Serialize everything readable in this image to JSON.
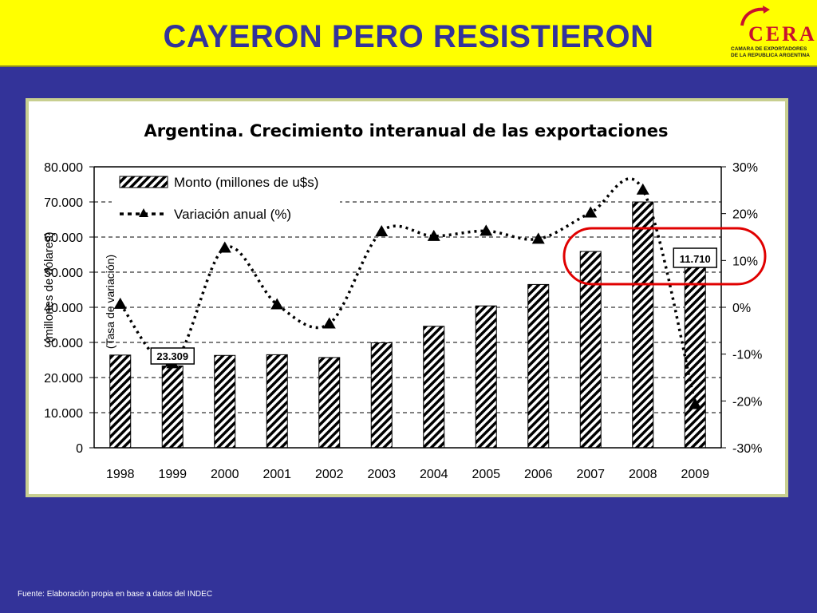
{
  "header": {
    "title": "CAYERON PERO RESISTIERON",
    "logo": {
      "name": "CERA",
      "subtitle_line1": "CAMARA DE EXPORTADORES",
      "subtitle_line2": "DE LA REPUBLICA ARGENTINA"
    },
    "background": "#ffff00",
    "title_color": "#33339a"
  },
  "chart_data": {
    "type": "bar",
    "title": "Argentina. Crecimiento interanual de las exportaciones",
    "categories": [
      "1998",
      "1999",
      "2000",
      "2001",
      "2002",
      "2003",
      "2004",
      "2005",
      "2006",
      "2007",
      "2008",
      "2009"
    ],
    "series": [
      {
        "name": "Monto (millones de u$s)",
        "type": "bar",
        "axis": "left",
        "values": [
          26400,
          23309,
          26300,
          26500,
          25700,
          29900,
          34600,
          40400,
          46500,
          55900,
          70000,
          55700
        ]
      },
      {
        "name": "Variación anual (%)",
        "type": "line",
        "axis": "right",
        "values": [
          0.7,
          -12,
          12.7,
          0.6,
          -3.5,
          16.2,
          15.2,
          16.3,
          14.6,
          20.2,
          25.1,
          -20.7
        ]
      }
    ],
    "ylabel": "(millones de dólares)",
    "y2label": "(Tasa de variación)",
    "ylim": [
      0,
      80000
    ],
    "yticks": [
      "0",
      "10.000",
      "20.000",
      "30.000",
      "40.000",
      "50.000",
      "60.000",
      "70.000",
      "80.000"
    ],
    "y2lim": [
      -30,
      30
    ],
    "y2ticks": [
      "-30%",
      "-20%",
      "-10%",
      "0%",
      "10%",
      "20%",
      "30%"
    ],
    "annotations": [
      "23.309",
      "11.710"
    ],
    "grid": true,
    "legend": "top-left"
  },
  "footer": {
    "source": "Fuente: Elaboración propia en base a datos del  INDEC"
  }
}
